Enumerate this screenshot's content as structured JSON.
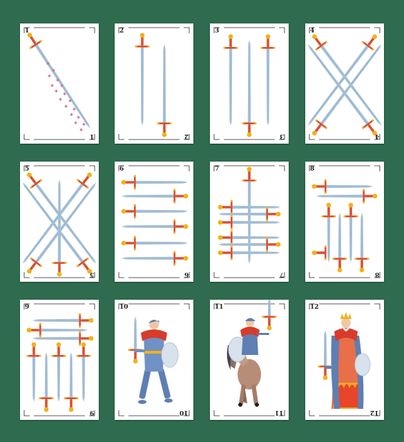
{
  "cards": [
    {
      "number": "1",
      "figure": "ace-sword"
    },
    {
      "number": "2",
      "figure": "swords"
    },
    {
      "number": "3",
      "figure": "swords"
    },
    {
      "number": "4",
      "figure": "swords"
    },
    {
      "number": "5",
      "figure": "swords"
    },
    {
      "number": "6",
      "figure": "swords"
    },
    {
      "number": "7",
      "figure": "swords"
    },
    {
      "number": "8",
      "figure": "swords"
    },
    {
      "number": "9",
      "figure": "swords"
    },
    {
      "number": "10",
      "figure": "page-knave"
    },
    {
      "number": "11",
      "figure": "knight-on-horse"
    },
    {
      "number": "12",
      "figure": "king"
    }
  ],
  "colors": {
    "table": "#2f6b4f",
    "card": "#ffffff",
    "blade": "#a9c3d9",
    "hilt": "#d9502e",
    "pommel": "#f2b21b",
    "cape": "#d83b2a"
  }
}
